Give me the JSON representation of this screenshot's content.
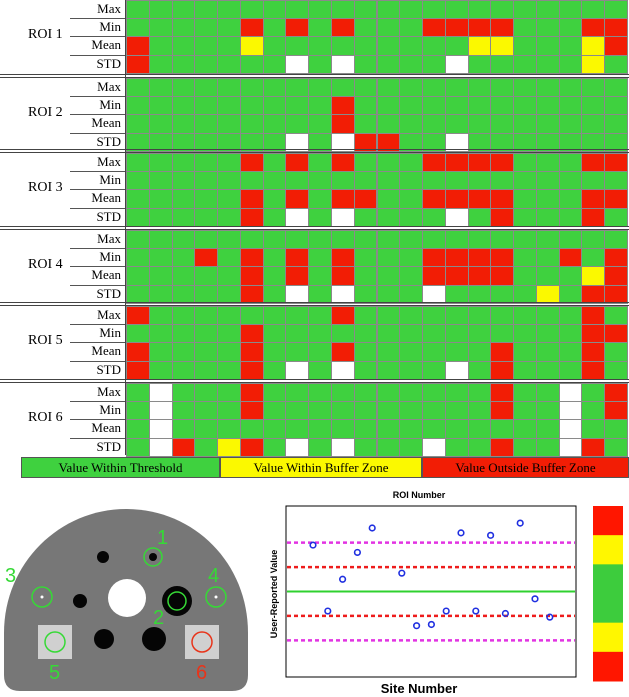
{
  "row_labels": [
    "Max",
    "Min",
    "Mean",
    "STD"
  ],
  "colors": {
    "G": "#3fd13f",
    "R": "#f21d05",
    "Y": "#fbf900",
    "W": "#ffffff"
  },
  "chart_data": [
    {
      "type": "heatmap",
      "rows_per_roi": [
        "Max",
        "Min",
        "Mean",
        "STD"
      ],
      "sites": 22,
      "legend": [
        "Value Within Threshold",
        "Value Within Buffer Zone",
        "Value Outside Buffer Zone"
      ],
      "rois": [
        {
          "name": "ROI 1",
          "rows": [
            "GGGGGGGGGGGGGGGGGGGGGG",
            "GGGGGRGRGRGGGRRRRGGGRR",
            "RGGGGYGGGGGGGGGYYGGGYR",
            "RGGGGGGWGWGGGGWGGGGGYG"
          ]
        },
        {
          "name": "ROI 2",
          "rows": [
            "GGGGGGGGGGGGGGGGGGGGGG",
            "GGGGGGGGGRGGGGGGGGGGGG",
            "GGGGGGGGGRGGGGGGGGGGGG",
            "GGGGGGGWGWRRGGWGGGGGGG"
          ]
        },
        {
          "name": "ROI 3",
          "rows": [
            "GGGGGRGRGRGGGRRRRGGGRR",
            "GGGGGGGGGGGGGGGGGGGGGG",
            "GGGGGRGRGRRGGRRRRGGGRR",
            "GGGGGRGWGWGGGGWGRGGGRG"
          ]
        },
        {
          "name": "ROI 4",
          "rows": [
            "GGGGGGGGGGGGGGGGGGGGGG",
            "GGGRGRGRGRGGGRRRRGGRGR",
            "GGGGGRGRGRGGGRRRRGGGYR",
            "GGGGGRGWGWGGGWGGGGYGRR"
          ]
        },
        {
          "name": "ROI 5",
          "rows": [
            "RGGGGGGGGRGGGGGGGGGGRG",
            "GGGGGRGGGGGGGGGGGGGGRR",
            "RGGGGRGGGRGGGGGGRGGGRG",
            "RGGGGRGWGWGGGGWGRGGGRG"
          ]
        },
        {
          "name": "ROI 6",
          "rows": [
            "GWGGGRGGGGGGGGGGRGGWGR",
            "GWGGGRGGGGGGGGGGRGGWGR",
            "GWGGGGGGGGGGGGGGGGGWGG",
            "GWRGYRGWGWGGGWGGRGGWRG"
          ]
        }
      ]
    },
    {
      "type": "scatter",
      "title": "ROI Number",
      "xlabel": "Site Number",
      "ylabel": "User-Reported Value",
      "ylim": [
        -3.5,
        3.5
      ],
      "reference_lines": [
        {
          "y": 0,
          "color": "#2fd12f",
          "style": "solid"
        },
        {
          "y": 1,
          "color": "#ee1c1c",
          "style": "dashed"
        },
        {
          "y": -1,
          "color": "#ee1c1c",
          "style": "dashed"
        },
        {
          "y": 2,
          "color": "#e233e2",
          "style": "dashed"
        },
        {
          "y": -2,
          "color": "#e233e2",
          "style": "dashed"
        }
      ],
      "points": [
        {
          "x": 1,
          "y": 1.9
        },
        {
          "x": 2,
          "y": -0.8
        },
        {
          "x": 3,
          "y": 0.5
        },
        {
          "x": 4,
          "y": 1.6
        },
        {
          "x": 5,
          "y": 2.6
        },
        {
          "x": 7,
          "y": 0.75
        },
        {
          "x": 8,
          "y": -1.4
        },
        {
          "x": 9,
          "y": -1.35
        },
        {
          "x": 10,
          "y": -0.8
        },
        {
          "x": 11,
          "y": 2.4
        },
        {
          "x": 12,
          "y": -0.8
        },
        {
          "x": 13,
          "y": 2.3
        },
        {
          "x": 14,
          "y": -0.9
        },
        {
          "x": 15,
          "y": 2.8
        },
        {
          "x": 16,
          "y": -0.3
        },
        {
          "x": 17,
          "y": -1.05
        }
      ],
      "colorbar": [
        "#ff1600",
        "#fff700",
        "#3dcc3d",
        "#3dcc3d",
        "#fff700",
        "#ff1600"
      ]
    }
  ],
  "phantom": {
    "labels": [
      {
        "text": "1",
        "color": "#36d936"
      },
      {
        "text": "2",
        "color": "#36d936"
      },
      {
        "text": "3",
        "color": "#36d936"
      },
      {
        "text": "4",
        "color": "#36d936"
      },
      {
        "text": "5",
        "color": "#36d936"
      },
      {
        "text": "6",
        "color": "#e8341a"
      }
    ]
  }
}
